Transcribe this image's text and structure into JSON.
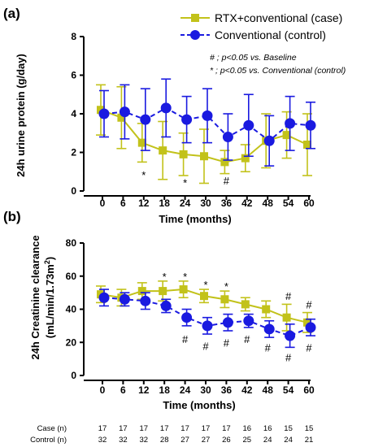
{
  "colors": {
    "case": "#c2c21a",
    "control": "#1a1ae0",
    "axis": "#000000"
  },
  "legend": {
    "case_label": "RTX+conventional (case)",
    "control_label": "Conventional (control)"
  },
  "notes": {
    "line1": "# ; p<0.05 vs. Baseline",
    "line2": "* ; p<0.05 vs. Conventional (control)"
  },
  "chart_data": [
    {
      "panel": "(a)",
      "type": "line",
      "x": [
        0,
        6,
        12,
        18,
        24,
        30,
        36,
        42,
        48,
        54,
        60
      ],
      "xlabel": "Time (months)",
      "ylabel": "24h urine protein (g/day)",
      "ylim": [
        0,
        8
      ],
      "yticks": [
        0,
        2,
        4,
        6,
        8
      ],
      "grid": false,
      "legend_position": "top-right",
      "series": [
        {
          "name": "RTX+conventional (case)",
          "marker": "square",
          "values": [
            4.2,
            3.8,
            2.5,
            2.1,
            1.9,
            1.8,
            1.5,
            1.7,
            2.6,
            2.9,
            2.4
          ],
          "err": [
            1.3,
            1.6,
            1.0,
            1.5,
            1.1,
            1.4,
            0.6,
            0.7,
            1.4,
            1.2,
            1.6
          ]
        },
        {
          "name": "Conventional (control)",
          "marker": "circle",
          "values": [
            4.0,
            4.1,
            3.7,
            4.3,
            3.7,
            3.9,
            2.8,
            3.4,
            2.6,
            3.5,
            3.4
          ],
          "err": [
            1.2,
            1.4,
            1.6,
            1.5,
            1.2,
            1.4,
            1.2,
            1.6,
            1.3,
            1.4,
            1.2
          ]
        }
      ],
      "annotations": [
        {
          "x": 12,
          "y": 0.85,
          "text": "*"
        },
        {
          "x": 24,
          "y": 0.45,
          "text": "*"
        },
        {
          "x": 36,
          "y": 0.55,
          "text": "#"
        }
      ]
    },
    {
      "panel": "(b)",
      "type": "line",
      "x": [
        0,
        6,
        12,
        18,
        24,
        30,
        36,
        42,
        48,
        54,
        60
      ],
      "xlabel": "Time (months)",
      "ylabel_line1": "24h Creatinine clearance",
      "ylabel_line2": "(mL/min/1.73m",
      "ylabel_sup": "2",
      "ylabel_end": ")",
      "ylim": [
        0,
        80
      ],
      "yticks": [
        0,
        20,
        40,
        60,
        80
      ],
      "grid": false,
      "series": [
        {
          "name": "RTX+conventional (case)",
          "marker": "square",
          "values": [
            49,
            47,
            51,
            51,
            52,
            48,
            46,
            43,
            40,
            35,
            32
          ],
          "err": [
            5,
            5,
            5,
            6,
            5,
            4,
            5,
            4,
            5,
            8,
            6
          ]
        },
        {
          "name": "Conventional (control)",
          "marker": "circle",
          "values": [
            47,
            46,
            45,
            42,
            35,
            30,
            32,
            33,
            28,
            24,
            29
          ],
          "err": [
            5,
            4,
            5,
            4,
            5,
            5,
            5,
            4,
            5,
            7,
            5
          ]
        }
      ],
      "annotations": [
        {
          "x": 18,
          "y": 60,
          "text": "*"
        },
        {
          "x": 24,
          "y": 60,
          "text": "*"
        },
        {
          "x": 30,
          "y": 55,
          "text": "*"
        },
        {
          "x": 36,
          "y": 54,
          "text": "*"
        },
        {
          "x": 54,
          "y": 48,
          "text": "#"
        },
        {
          "x": 60,
          "y": 43,
          "text": "#"
        },
        {
          "x": 24,
          "y": 22,
          "text": "#"
        },
        {
          "x": 30,
          "y": 18,
          "text": "#"
        },
        {
          "x": 36,
          "y": 20,
          "text": "#"
        },
        {
          "x": 42,
          "y": 22,
          "text": "#"
        },
        {
          "x": 48,
          "y": 17,
          "text": "#"
        },
        {
          "x": 54,
          "y": 11,
          "text": "#"
        },
        {
          "x": 60,
          "y": 17,
          "text": "#"
        }
      ]
    }
  ],
  "counts": {
    "rows": [
      {
        "label": "Case (n)",
        "values": [
          17,
          17,
          17,
          17,
          17,
          17,
          17,
          16,
          16,
          15,
          15
        ]
      },
      {
        "label": "Control (n)",
        "values": [
          32,
          32,
          32,
          28,
          27,
          27,
          26,
          25,
          24,
          24,
          21
        ]
      }
    ]
  }
}
